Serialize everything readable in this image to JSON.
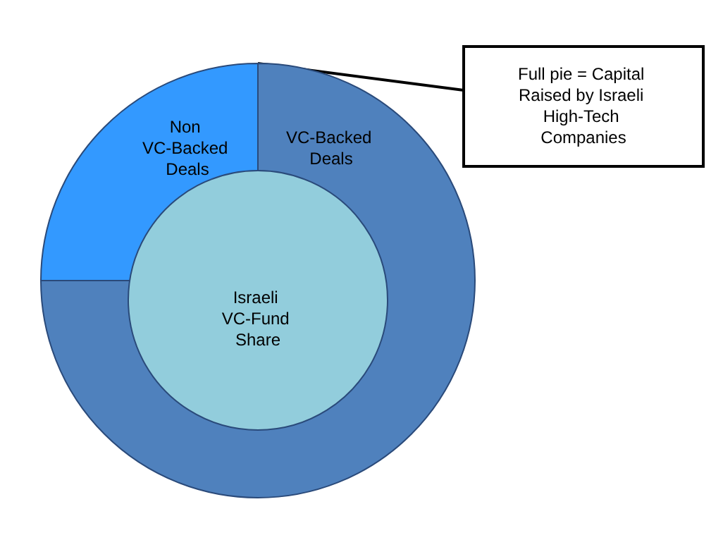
{
  "chart_data": [
    {
      "type": "pie",
      "categories": [
        "Non VC-Backed Deals",
        "VC-Backed Deals"
      ],
      "values": [
        25,
        75
      ],
      "colors": [
        "#3399ff",
        "#4f81bd"
      ],
      "annotations": [
        "Full pie = Capital Raised by Israeli High-Tech Companies"
      ]
    },
    {
      "type": "pie",
      "categories": [
        "Israeli VC-Fund Share"
      ],
      "values": [
        100
      ],
      "colors": [
        "#92cddc"
      ]
    }
  ]
}
